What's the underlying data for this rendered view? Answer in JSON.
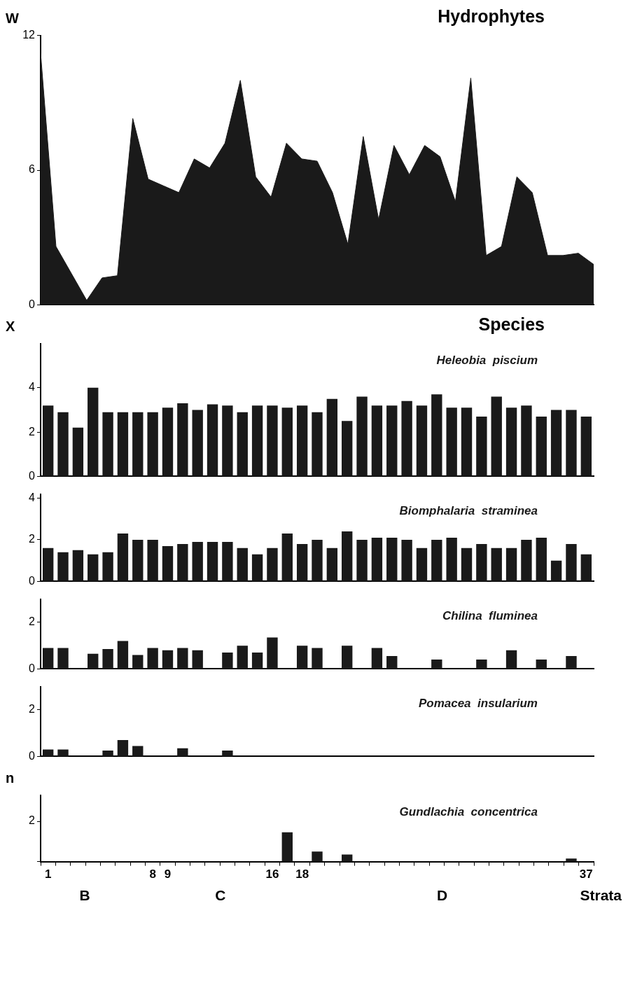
{
  "chart_data": [
    {
      "type": "area",
      "title": "Hydrophytes",
      "ylabel": "W",
      "categories": [
        null,
        null,
        null,
        null,
        null,
        null,
        null,
        null,
        null,
        null,
        null,
        null,
        null,
        null,
        null,
        null,
        null,
        null,
        null,
        null,
        null,
        null,
        null,
        null,
        null,
        null,
        null,
        null,
        null,
        null,
        null,
        null,
        null,
        null,
        null,
        null,
        null
      ],
      "color": "#1a1a1a",
      "values": [
        11.2,
        2.6,
        1.4,
        0.2,
        1.2,
        1.3,
        8.3,
        5.6,
        5.3,
        5.0,
        6.5,
        6.1,
        7.2,
        10.0,
        5.7,
        4.8,
        7.2,
        6.5,
        6.4,
        5.0,
        2.7,
        7.5,
        3.8,
        7.1,
        5.8,
        7.1,
        6.6,
        4.6,
        10.1,
        2.2,
        2.6,
        5.7,
        5.0,
        2.2,
        2.2,
        2.3,
        1.8
      ],
      "ylim": [
        0,
        12
      ],
      "yticks": [
        0,
        6,
        12
      ],
      "tick_labels": "y"
    },
    {
      "type": "bar",
      "title": "Species",
      "ylabel": "X",
      "categories": [
        null,
        null,
        null,
        null,
        null,
        null,
        null,
        null,
        null,
        null,
        null,
        null,
        null,
        null,
        null,
        null,
        null,
        null,
        null,
        null,
        null,
        null,
        null,
        null,
        null,
        null,
        null,
        null,
        null,
        null,
        null,
        null,
        null,
        null,
        null,
        null,
        null
      ],
      "series": [
        {
          "name": "Heleobia  piscium",
          "color": "#1a1a1a",
          "values": [
            3.2,
            2.9,
            2.2,
            4.0,
            2.9,
            2.9,
            2.9,
            2.9,
            3.1,
            3.3,
            3.0,
            3.25,
            3.2,
            2.9,
            3.2,
            3.2,
            3.1,
            3.2,
            2.9,
            3.5,
            2.5,
            3.6,
            3.2,
            3.2,
            3.4,
            3.2,
            3.7,
            3.1,
            3.1,
            2.7,
            3.6,
            3.1,
            3.2,
            2.7,
            3.0,
            3.0,
            2.7
          ]
        }
      ],
      "ylim": [
        0,
        6
      ],
      "yticks": [
        0,
        2,
        4
      ],
      "tick_labels": "y"
    },
    {
      "type": "bar",
      "categories": [
        null,
        null,
        null,
        null,
        null,
        null,
        null,
        null,
        null,
        null,
        null,
        null,
        null,
        null,
        null,
        null,
        null,
        null,
        null,
        null,
        null,
        null,
        null,
        null,
        null,
        null,
        null,
        null,
        null,
        null,
        null,
        null,
        null,
        null,
        null,
        null,
        null
      ],
      "series": [
        {
          "name": "Biomphalaria  straminea",
          "color": "#1a1a1a",
          "values": [
            1.6,
            1.4,
            1.5,
            1.3,
            1.4,
            2.3,
            2.0,
            2.0,
            1.7,
            1.8,
            1.9,
            1.9,
            1.9,
            1.6,
            1.3,
            1.6,
            2.3,
            1.8,
            2.0,
            1.6,
            2.4,
            2.0,
            2.1,
            2.1,
            2.0,
            1.6,
            2.0,
            2.1,
            1.6,
            1.8,
            1.6,
            1.6,
            2.0,
            2.1,
            1.0,
            1.8,
            1.3
          ]
        }
      ],
      "ylim": [
        0,
        4.2
      ],
      "yticks": [
        0,
        2,
        4
      ],
      "tick_labels": "y"
    },
    {
      "type": "bar",
      "categories": [
        null,
        null,
        null,
        null,
        null,
        null,
        null,
        null,
        null,
        null,
        null,
        null,
        null,
        null,
        null,
        null,
        null,
        null,
        null,
        null,
        null,
        null,
        null,
        null,
        null,
        null,
        null,
        null,
        null,
        null,
        null,
        null,
        null,
        null,
        null,
        null,
        null
      ],
      "series": [
        {
          "name": "Chilina  fluminea",
          "color": "#1a1a1a",
          "values": [
            0.9,
            0.9,
            null,
            0.65,
            0.85,
            1.2,
            0.6,
            0.9,
            0.8,
            0.9,
            0.8,
            null,
            0.7,
            1.0,
            0.7,
            1.35,
            null,
            1.0,
            0.9,
            null,
            1.0,
            null,
            0.9,
            0.55,
            null,
            null,
            0.4,
            null,
            null,
            0.4,
            null,
            0.8,
            null,
            0.4,
            null,
            0.55,
            null
          ]
        }
      ],
      "ylim": [
        0,
        3
      ],
      "yticks": [
        0,
        2
      ],
      "tick_labels": "y"
    },
    {
      "type": "bar",
      "categories": [
        null,
        null,
        null,
        null,
        null,
        null,
        null,
        null,
        null,
        null,
        null,
        null,
        null,
        null,
        null,
        null,
        null,
        null,
        null,
        null,
        null,
        null,
        null,
        null,
        null,
        null,
        null,
        null,
        null,
        null,
        null,
        null,
        null,
        null,
        null,
        null,
        null
      ],
      "series": [
        {
          "name": "Pomacea  insularium",
          "color": "#1a1a1a",
          "values": [
            0.3,
            0.3,
            null,
            null,
            0.25,
            0.7,
            0.45,
            null,
            null,
            0.35,
            null,
            null,
            0.25,
            null,
            null,
            null,
            null,
            null,
            null,
            null,
            null,
            null,
            null,
            null,
            null,
            null,
            null,
            null,
            null,
            null,
            null,
            null,
            null,
            null,
            null,
            null,
            null
          ]
        }
      ],
      "ylim": [
        0,
        3
      ],
      "yticks": [
        0,
        2
      ],
      "tick_labels": "y"
    },
    {
      "type": "bar",
      "ylabel": "n",
      "xlabel": "Strata",
      "annotations": [
        "B",
        "C",
        "D"
      ],
      "categories": [
        "1",
        null,
        null,
        null,
        null,
        null,
        null,
        "8",
        "9",
        null,
        null,
        null,
        null,
        null,
        null,
        "16",
        null,
        "18",
        null,
        null,
        null,
        null,
        null,
        null,
        null,
        null,
        null,
        null,
        null,
        null,
        null,
        null,
        null,
        null,
        null,
        null,
        "37"
      ],
      "series": [
        {
          "name": "Gundlachia  concentrica",
          "color": "#1a1a1a",
          "values": [
            null,
            null,
            null,
            null,
            null,
            null,
            null,
            null,
            null,
            null,
            null,
            null,
            null,
            null,
            null,
            null,
            1.45,
            null,
            0.5,
            null,
            0.35,
            null,
            null,
            null,
            null,
            null,
            null,
            null,
            null,
            null,
            null,
            null,
            null,
            null,
            null,
            0.15,
            null
          ]
        }
      ],
      "ylim": [
        0,
        3.3
      ],
      "yticks": [
        {
          "value": 0,
          "label": null
        },
        2
      ]
    }
  ]
}
